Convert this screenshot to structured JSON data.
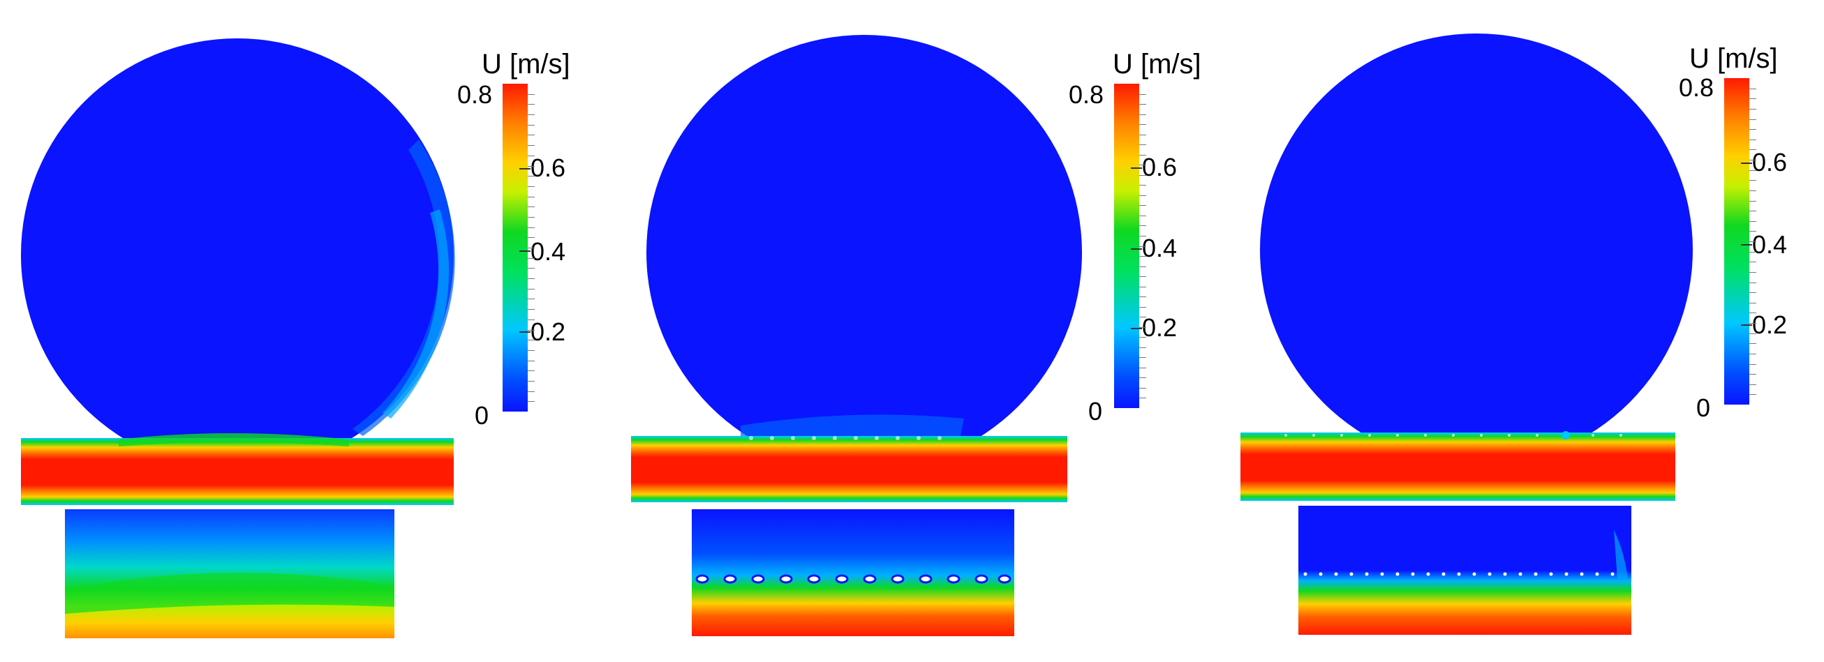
{
  "panels": [
    {
      "colorbar": {
        "title": "U [m/s]",
        "ticks": [
          "0",
          "0.2",
          "0.4",
          "0.6",
          "0.8"
        ],
        "min": 0,
        "max": 0.8
      }
    },
    {
      "colorbar": {
        "title": "U [m/s]",
        "ticks": [
          "0",
          "0.2",
          "0.4",
          "0.6",
          "0.8"
        ],
        "min": 0,
        "max": 0.8
      }
    },
    {
      "colorbar": {
        "title": "U [m/s]",
        "ticks": [
          "0",
          "0.2",
          "0.4",
          "0.6",
          "0.8"
        ],
        "min": 0,
        "max": 0.8
      }
    }
  ],
  "colors": {
    "blue": "#0a14ff",
    "cyan": "#00c8ff",
    "green": "#10d820",
    "yellow": "#ffd000",
    "orange": "#ff8000",
    "red": "#ff1a00"
  }
}
